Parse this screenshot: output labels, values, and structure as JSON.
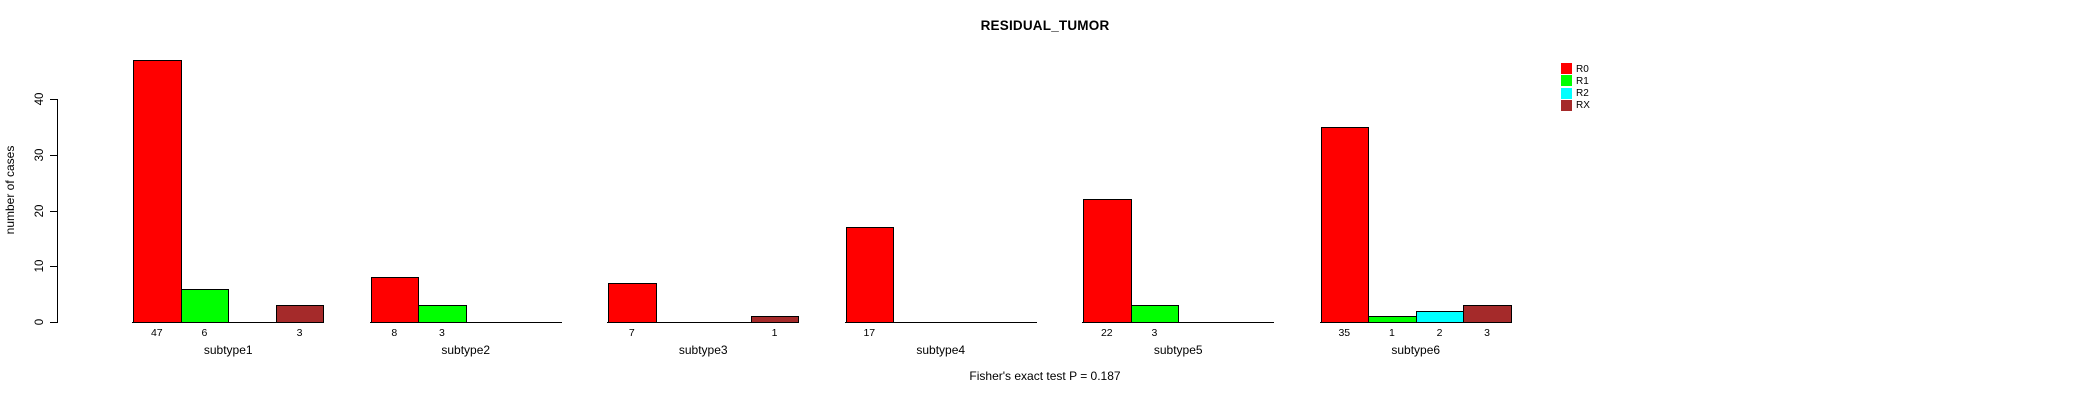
{
  "title": "RESIDUAL_TUMOR",
  "footer": "Fisher's exact test P = 0.187",
  "y_axis": {
    "label": "number of cases",
    "ticks": [
      0,
      10,
      20,
      30,
      40
    ]
  },
  "legend": {
    "position": "right",
    "entries": [
      "R0",
      "R1",
      "R2",
      "RX"
    ]
  },
  "chart_data": {
    "type": "bar",
    "title": "RESIDUAL_TUMOR",
    "categories": [
      "subtype1",
      "subtype2",
      "subtype3",
      "subtype4",
      "subtype5",
      "subtype6"
    ],
    "series": [
      {
        "name": "R0",
        "color": "#FF0000",
        "values": [
          47,
          8,
          7,
          17,
          22,
          35
        ]
      },
      {
        "name": "R1",
        "color": "#00FF00",
        "values": [
          6,
          3,
          0,
          0,
          3,
          1
        ]
      },
      {
        "name": "R2",
        "color": "#00FFFF",
        "values": [
          0,
          0,
          0,
          0,
          0,
          2
        ]
      },
      {
        "name": "RX",
        "color": "#A52A2A",
        "values": [
          3,
          0,
          1,
          0,
          0,
          3
        ]
      }
    ],
    "xlabel": "",
    "ylabel": "number of cases",
    "ylim": [
      0,
      47
    ],
    "y_ticks": [
      0,
      10,
      20,
      30,
      40
    ],
    "grid": false,
    "legend_position": "top-right",
    "bar_value_labels": "value shown under each non-zero bar",
    "annotation": "Fisher's exact test P = 0.187"
  }
}
